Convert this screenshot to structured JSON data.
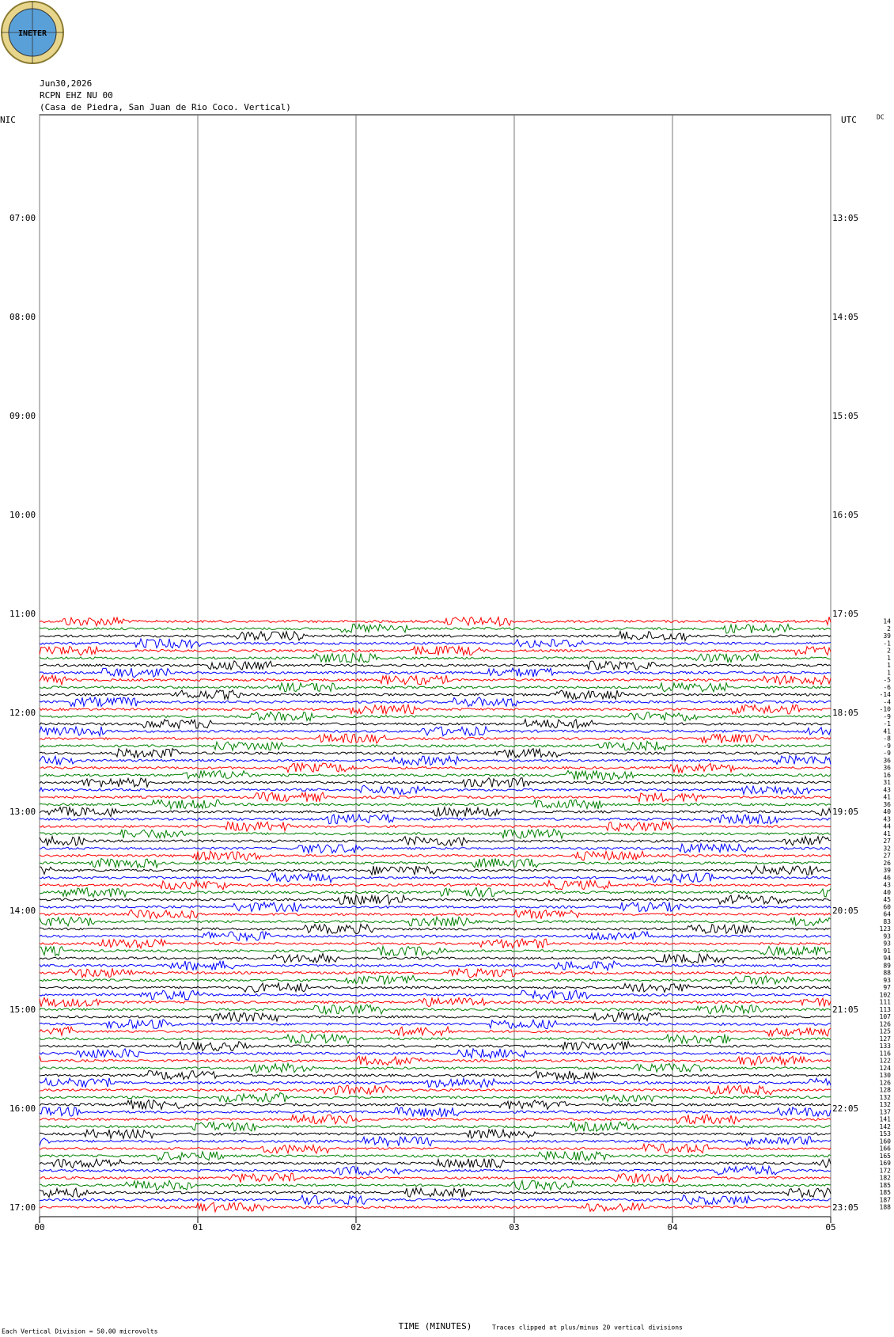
{
  "header": {
    "logo_text": "INETER",
    "date": "Jun30,2026",
    "station": "RCPN EHZ NU 00",
    "location": "(Casa de Piedra, San Juan de Rio Coco. Vertical)",
    "left_zone": "NIC",
    "right_zone": "UTC",
    "dc_label": "DC"
  },
  "left_labels": [
    "07:00",
    "08:00",
    "09:00",
    "10:00",
    "11:00",
    "12:00",
    "13:00",
    "14:00",
    "15:00",
    "16:00",
    "17:00"
  ],
  "right_labels": [
    "13:05",
    "14:05",
    "15:05",
    "16:05",
    "17:05",
    "18:05",
    "19:05",
    "20:05",
    "21:05",
    "22:05",
    "23:05"
  ],
  "x_axis": {
    "xlim": [
      0,
      5
    ],
    "xticks": [
      {
        "value": 0,
        "label": "00"
      },
      {
        "value": 1,
        "label": "01"
      },
      {
        "value": 2,
        "label": "02"
      },
      {
        "value": 3,
        "label": "03"
      },
      {
        "value": 4,
        "label": "04"
      },
      {
        "value": 5,
        "label": "05"
      }
    ],
    "label": "TIME (MINUTES)"
  },
  "dc_offsets": [
    14,
    2,
    39,
    -1,
    2,
    1,
    1,
    1,
    -5,
    -6,
    -14,
    -4,
    -10,
    -9,
    -1,
    41,
    -8,
    -9,
    -9,
    36,
    36,
    16,
    31,
    43,
    41,
    36,
    40,
    43,
    44,
    41,
    27,
    32,
    27,
    26,
    39,
    46,
    43,
    40,
    45,
    60,
    64,
    83,
    123,
    93,
    93,
    91,
    94,
    89,
    88,
    93,
    97,
    102,
    111,
    113,
    107,
    126,
    125,
    127,
    133,
    116,
    122,
    124,
    130,
    126,
    128,
    132,
    132,
    137,
    141,
    142,
    153,
    160,
    166,
    165,
    169,
    172,
    182,
    185,
    185,
    187,
    188
  ],
  "trace_colors": [
    "#ff0000",
    "#008000",
    "#000000",
    "#0000ff"
  ],
  "footer": {
    "scale": "Each Vertical Division =   50.00 microvolts",
    "clip": "Traces clipped at plus/minus 20 vertical divisions"
  }
}
